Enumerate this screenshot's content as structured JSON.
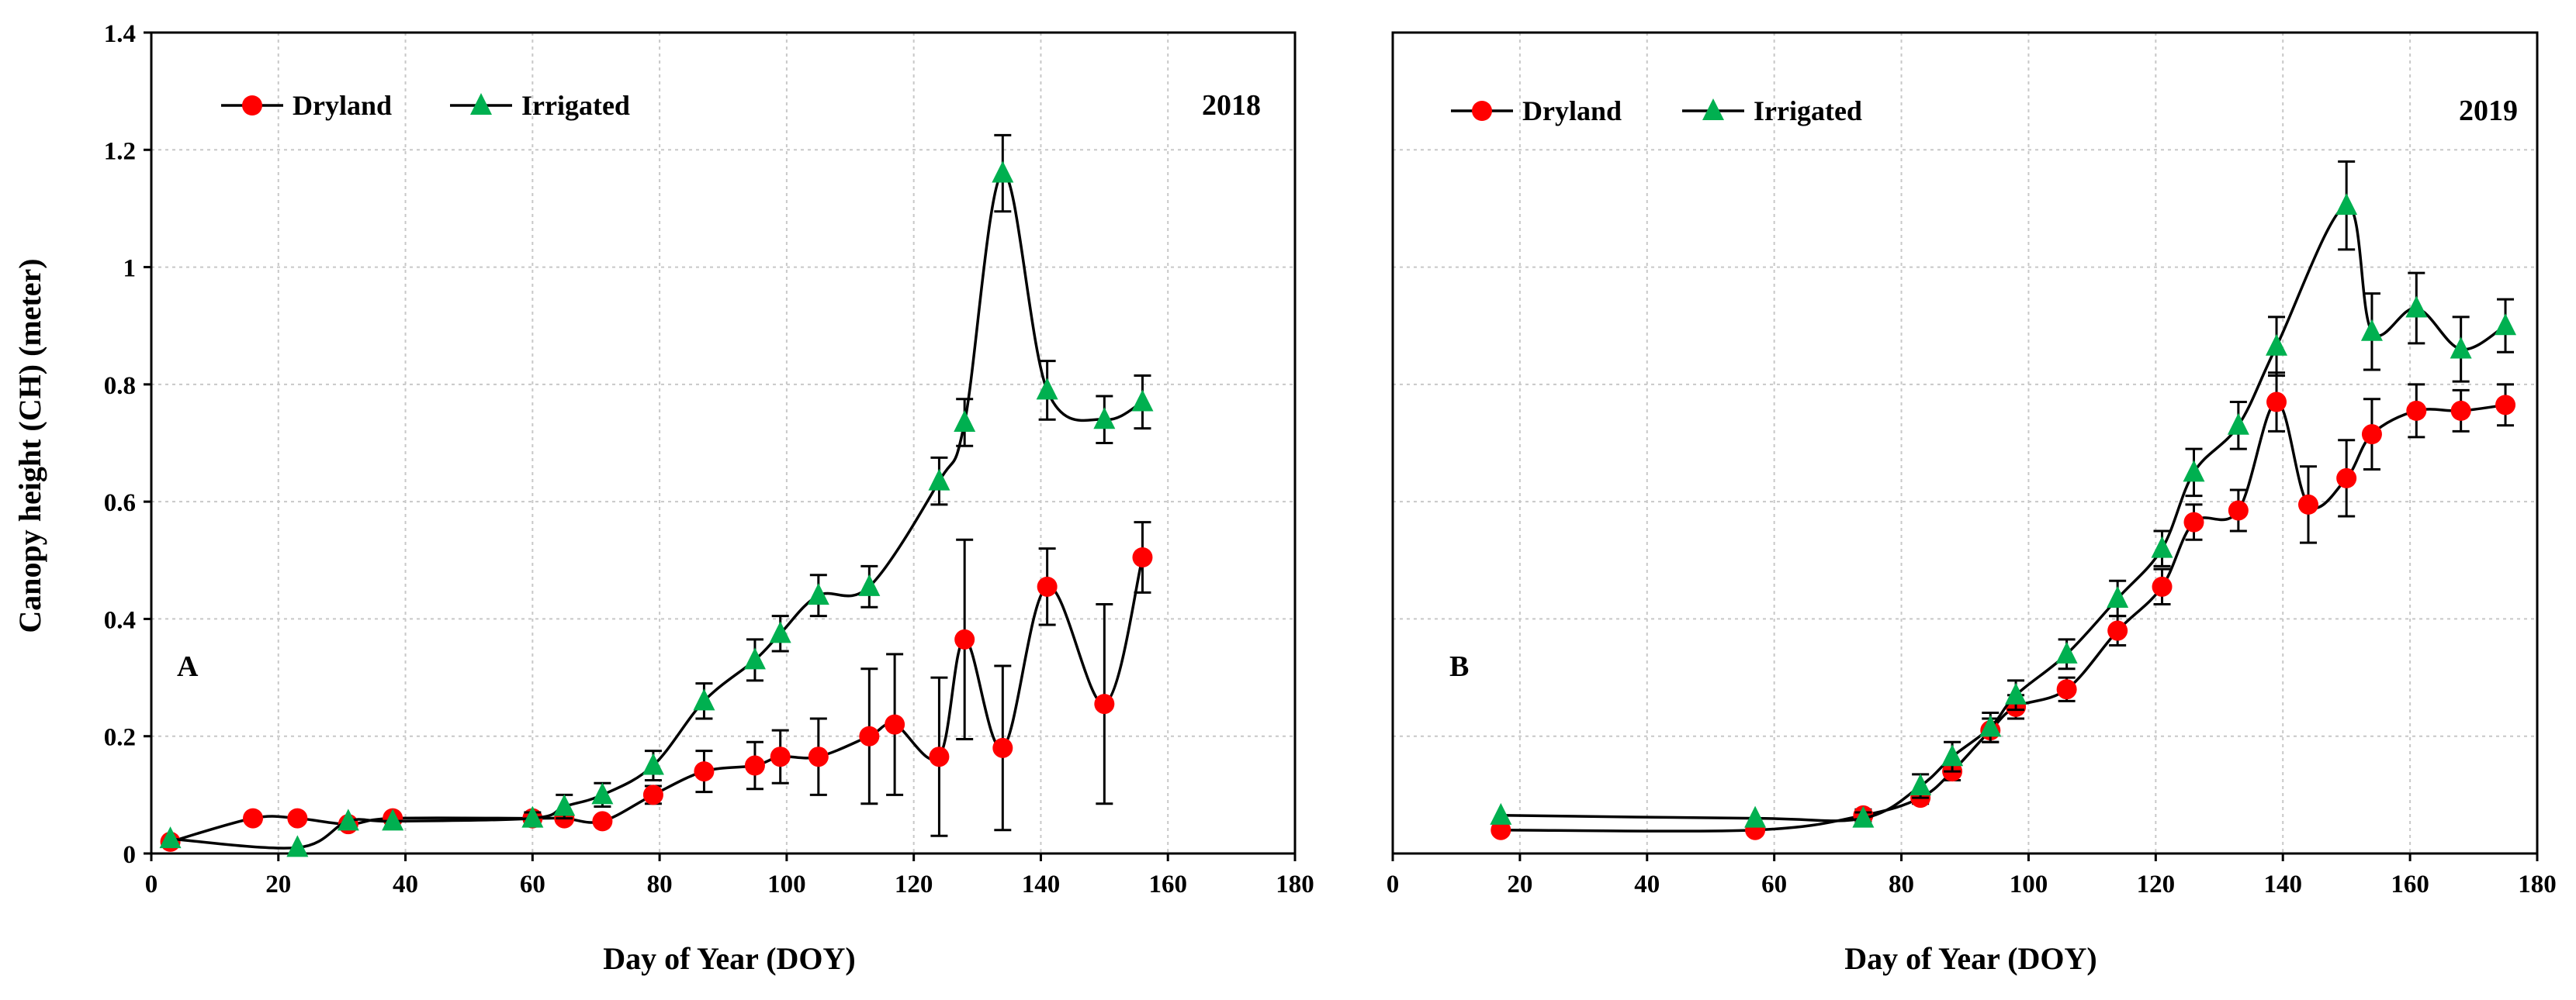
{
  "ylabel": "Canopy height (CH) (meter)",
  "colors": {
    "dryland": "#ff0000",
    "irrigated": "#00b050",
    "line": "#000000",
    "grid": "#c8c8c8"
  },
  "chart_data": [
    {
      "type": "line",
      "panel": "A",
      "year": "2018",
      "xlabel": "Day of Year (DOY)",
      "ylabel": "Canopy height (CH) (meter)",
      "xlim": [
        0,
        180
      ],
      "ylim": [
        0,
        1.4
      ],
      "xticks": [
        "0",
        "20",
        "40",
        "60",
        "80",
        "100",
        "120",
        "140",
        "160",
        "180"
      ],
      "yticks": [
        "0",
        "0.2",
        "0.4",
        "0.6",
        "0.8",
        "1",
        "1.2",
        "1.4"
      ],
      "grid": true,
      "legend_position": "top-left",
      "series": [
        {
          "name": "Dryland",
          "marker": "circle",
          "x": [
            3,
            16,
            23,
            31,
            38,
            60,
            65,
            71,
            79,
            87,
            95,
            99,
            105,
            113,
            117,
            124,
            128,
            134,
            141,
            150,
            156
          ],
          "y": [
            0.02,
            0.06,
            0.06,
            0.05,
            0.06,
            0.06,
            0.06,
            0.055,
            0.1,
            0.14,
            0.15,
            0.165,
            0.165,
            0.2,
            0.22,
            0.165,
            0.365,
            0.18,
            0.455,
            0.255,
            0.505
          ],
          "err": [
            0,
            0,
            0,
            0,
            0,
            0,
            0,
            0,
            0.015,
            0.035,
            0.04,
            0.045,
            0.065,
            0.115,
            0.12,
            0.135,
            0.17,
            0.14,
            0.065,
            0.17,
            0.06
          ]
        },
        {
          "name": "Irrigated",
          "marker": "triangle",
          "x": [
            3,
            23,
            31,
            38,
            60,
            65,
            71,
            79,
            87,
            95,
            99,
            105,
            113,
            124,
            128,
            134,
            141,
            150,
            156
          ],
          "y": [
            0.025,
            0.01,
            0.055,
            0.055,
            0.06,
            0.08,
            0.1,
            0.15,
            0.26,
            0.33,
            0.375,
            0.44,
            0.455,
            0.635,
            0.735,
            1.16,
            0.79,
            0.74,
            0.77
          ],
          "err": [
            0,
            0,
            0,
            0,
            0.01,
            0.02,
            0.02,
            0.025,
            0.03,
            0.035,
            0.03,
            0.035,
            0.035,
            0.04,
            0.04,
            0.065,
            0.05,
            0.04,
            0.045
          ]
        }
      ]
    },
    {
      "type": "line",
      "panel": "B",
      "year": "2019",
      "xlabel": "Day of Year (DOY)",
      "ylabel": "",
      "xlim": [
        0,
        180
      ],
      "ylim": [
        0,
        1.4
      ],
      "xticks": [
        "0",
        "20",
        "40",
        "60",
        "80",
        "100",
        "120",
        "140",
        "160",
        "180"
      ],
      "yticks": [],
      "grid": true,
      "legend_position": "top-left",
      "series": [
        {
          "name": "Dryland",
          "marker": "circle",
          "x": [
            17,
            57,
            74,
            83,
            88,
            94,
            98,
            106,
            114,
            121,
            126,
            133,
            139,
            144,
            150,
            154,
            161,
            168,
            175
          ],
          "y": [
            0.04,
            0.04,
            0.065,
            0.095,
            0.14,
            0.21,
            0.25,
            0.28,
            0.38,
            0.455,
            0.565,
            0.585,
            0.77,
            0.595,
            0.64,
            0.715,
            0.755,
            0.755,
            0.765
          ],
          "err": [
            0,
            0,
            0.01,
            0.01,
            0.015,
            0.02,
            0.02,
            0.02,
            0.025,
            0.03,
            0.03,
            0.035,
            0.05,
            0.065,
            0.065,
            0.06,
            0.045,
            0.035,
            0.035
          ]
        },
        {
          "name": "Irrigated",
          "marker": "triangle",
          "x": [
            17,
            57,
            74,
            83,
            88,
            94,
            98,
            106,
            114,
            121,
            126,
            133,
            139,
            150,
            154,
            161,
            168,
            175
          ],
          "y": [
            0.065,
            0.06,
            0.06,
            0.115,
            0.165,
            0.215,
            0.27,
            0.34,
            0.435,
            0.52,
            0.65,
            0.73,
            0.865,
            1.105,
            0.89,
            0.93,
            0.86,
            0.9
          ],
          "err": [
            0,
            0,
            0.01,
            0.02,
            0.025,
            0.025,
            0.025,
            0.025,
            0.03,
            0.03,
            0.04,
            0.04,
            0.05,
            0.075,
            0.065,
            0.06,
            0.055,
            0.045
          ]
        }
      ]
    }
  ]
}
